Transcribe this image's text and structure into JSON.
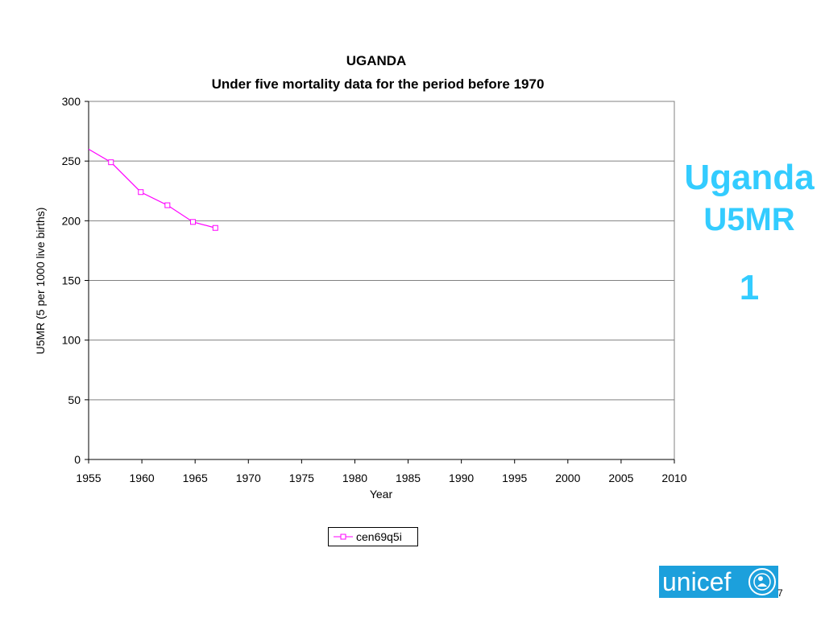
{
  "chart_data": {
    "type": "line",
    "title": "UGANDA",
    "subtitle": "Under five mortality data for the period before 1970",
    "xlabel": "Year",
    "ylabel": "U5MR (5 per 1000 live births)",
    "xlim": [
      1955,
      2010
    ],
    "ylim": [
      0,
      300
    ],
    "x_ticks": [
      1955,
      1960,
      1965,
      1970,
      1975,
      1980,
      1985,
      1990,
      1995,
      2000,
      2005,
      2010
    ],
    "y_ticks": [
      0,
      50,
      100,
      150,
      200,
      250,
      300
    ],
    "grid": "horizontal",
    "legend": "bottom",
    "series": [
      {
        "name": "cen69q5i",
        "color": "#ff00ff",
        "marker": "square",
        "points": [
          {
            "x": 1955.0,
            "y": 260
          },
          {
            "x": 1957.1,
            "y": 249
          },
          {
            "x": 1959.9,
            "y": 224
          },
          {
            "x": 1962.4,
            "y": 213
          },
          {
            "x": 1964.8,
            "y": 199
          },
          {
            "x": 1966.9,
            "y": 194
          }
        ],
        "marker_start_index": 1
      }
    ]
  },
  "side_text": {
    "line1": "Uganda",
    "line2": "U5MR",
    "line3": "1"
  },
  "logo": {
    "text": "unicef",
    "color": "#1ca0dc"
  },
  "page_number": "7"
}
